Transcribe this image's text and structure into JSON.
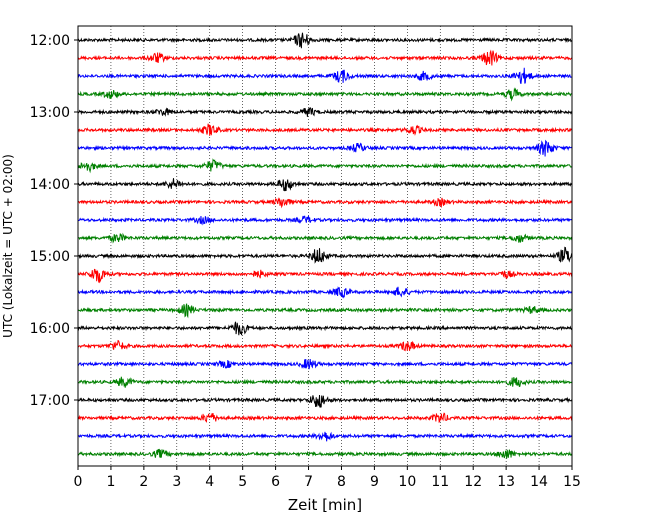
{
  "chart_data": {
    "type": "line",
    "title": "",
    "xlabel": "Zeit  [min]",
    "ylabel": "UTC (Lokalzeit = UTC + 02:00)",
    "xlim": [
      0,
      15
    ],
    "x_ticks": [
      "0",
      "1",
      "2",
      "3",
      "4",
      "5",
      "6",
      "7",
      "8",
      "9",
      "10",
      "11",
      "12",
      "13",
      "14",
      "15"
    ],
    "y_ticks": [
      "12:00",
      "13:00",
      "14:00",
      "15:00",
      "16:00",
      "17:00"
    ],
    "grid": "vertical dotted",
    "trace_colors": [
      "#000000",
      "#ff0000",
      "#0000ff",
      "#008000"
    ],
    "traces": [
      {
        "time": "12:00",
        "color": "#000000",
        "bursts": [
          [
            6.8,
            1.0
          ]
        ]
      },
      {
        "time": "12:15",
        "color": "#ff0000",
        "bursts": [
          [
            2.4,
            0.6
          ],
          [
            12.5,
            1.0
          ]
        ]
      },
      {
        "time": "12:30",
        "color": "#0000ff",
        "bursts": [
          [
            8.0,
            0.8
          ],
          [
            10.5,
            0.5
          ],
          [
            13.5,
            1.0
          ]
        ]
      },
      {
        "time": "12:45",
        "color": "#008000",
        "bursts": [
          [
            1.0,
            0.5
          ],
          [
            13.2,
            0.6
          ]
        ]
      },
      {
        "time": "13:00",
        "color": "#000000",
        "bursts": [
          [
            2.6,
            0.4
          ],
          [
            7.0,
            0.5
          ]
        ]
      },
      {
        "time": "13:15",
        "color": "#ff0000",
        "bursts": [
          [
            4.0,
            0.7
          ],
          [
            10.2,
            0.5
          ]
        ]
      },
      {
        "time": "13:30",
        "color": "#0000ff",
        "bursts": [
          [
            8.5,
            0.5
          ],
          [
            14.2,
            1.0
          ]
        ]
      },
      {
        "time": "13:45",
        "color": "#008000",
        "bursts": [
          [
            0.3,
            0.6
          ],
          [
            4.1,
            0.7
          ]
        ]
      },
      {
        "time": "14:00",
        "color": "#000000",
        "bursts": [
          [
            2.9,
            0.6
          ],
          [
            6.3,
            0.8
          ]
        ]
      },
      {
        "time": "14:15",
        "color": "#ff0000",
        "bursts": [
          [
            6.2,
            0.6
          ],
          [
            11.0,
            0.4
          ]
        ]
      },
      {
        "time": "14:30",
        "color": "#0000ff",
        "bursts": [
          [
            3.8,
            0.4
          ],
          [
            6.9,
            0.4
          ]
        ]
      },
      {
        "time": "14:45",
        "color": "#008000",
        "bursts": [
          [
            1.2,
            0.5
          ],
          [
            13.4,
            0.5
          ]
        ]
      },
      {
        "time": "15:00",
        "color": "#000000",
        "bursts": [
          [
            7.3,
            1.0
          ],
          [
            14.8,
            1.0
          ]
        ]
      },
      {
        "time": "15:15",
        "color": "#ff0000",
        "bursts": [
          [
            0.6,
            1.0
          ],
          [
            5.5,
            0.4
          ],
          [
            13.0,
            0.4
          ]
        ]
      },
      {
        "time": "15:30",
        "color": "#0000ff",
        "bursts": [
          [
            8.0,
            0.6
          ],
          [
            9.8,
            0.6
          ]
        ]
      },
      {
        "time": "15:45",
        "color": "#008000",
        "bursts": [
          [
            3.3,
            0.7
          ],
          [
            13.8,
            0.4
          ]
        ]
      },
      {
        "time": "16:00",
        "color": "#000000",
        "bursts": [
          [
            4.9,
            0.9
          ]
        ]
      },
      {
        "time": "16:15",
        "color": "#ff0000",
        "bursts": [
          [
            1.2,
            0.6
          ],
          [
            10.0,
            0.6
          ]
        ]
      },
      {
        "time": "16:30",
        "color": "#0000ff",
        "bursts": [
          [
            4.5,
            0.4
          ],
          [
            7.0,
            0.6
          ]
        ]
      },
      {
        "time": "16:45",
        "color": "#008000",
        "bursts": [
          [
            1.4,
            0.6
          ],
          [
            13.3,
            0.6
          ]
        ]
      },
      {
        "time": "17:00",
        "color": "#000000",
        "bursts": [
          [
            7.3,
            1.0
          ]
        ]
      },
      {
        "time": "17:15",
        "color": "#ff0000",
        "bursts": [
          [
            4.0,
            0.6
          ],
          [
            11.0,
            0.6
          ]
        ]
      },
      {
        "time": "17:30",
        "color": "#0000ff",
        "bursts": [
          [
            7.5,
            0.6
          ]
        ]
      },
      {
        "time": "17:45",
        "color": "#008000",
        "bursts": [
          [
            2.5,
            0.5
          ],
          [
            13.0,
            0.6
          ]
        ]
      }
    ]
  }
}
